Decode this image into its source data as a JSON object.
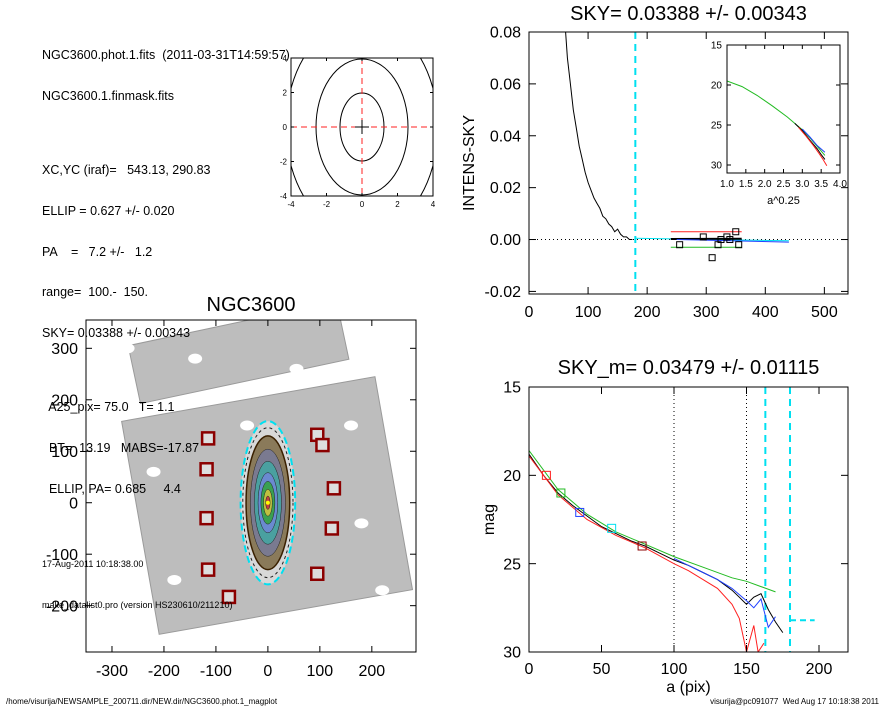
{
  "header": {
    "lines1": [
      "NGC3600.phot.1.fits  (2011-03-31T14:59:57)",
      "NGC3600.1.finmask.fits"
    ],
    "lines2": [
      "XC,YC (iraf)=   543.13, 290.83",
      "ELLIP = 0.627 +/- 0.020",
      "PA    =   7.2 +/-   1.2",
      "range=  100.-  150.",
      "SKY= 0.03388 +/- 0.00343"
    ],
    "lines3": [
      "  A25_pix= 75.0   T= 1.1",
      "  BT=  13.19   MABS=-17.87",
      "  ELLIP, PA= 0.685     4.4"
    ],
    "date": "17-Aug-2011 10:18:38.00",
    "program": "make_datalist0.pro (version HS230610/211210)"
  },
  "footer": {
    "left": "/home/visurija/NEWSAMPLE_200711.dir/NEW.dir/NGC3600.phot.1_magplot",
    "right": "visurija@pc091077  Wed Aug 17 10:18:38 2011"
  },
  "colors": {
    "cyan": "#00e0f0",
    "red": "#ff2020",
    "green": "#22bb22",
    "blue": "#2040ff",
    "maroon": "#8b0000"
  },
  "chart_data": [
    {
      "id": "contour",
      "type": "scatter",
      "title": "",
      "xlim": [
        -4,
        4
      ],
      "ylim": [
        -4,
        4
      ],
      "xticks": [
        -4,
        -2,
        0,
        2,
        4
      ],
      "yticks": [
        -4,
        -2,
        0,
        2,
        4
      ],
      "center": [
        0,
        0
      ]
    },
    {
      "id": "sky",
      "type": "line",
      "title": "SKY= 0.03388 +/- 0.00343",
      "xlabel": "",
      "ylabel": "INTENS-SKY",
      "xlim": [
        0,
        540
      ],
      "ylim": [
        -0.021,
        0.08
      ],
      "xticks": [
        0,
        100,
        200,
        300,
        400,
        500
      ],
      "yticks": [
        -0.02,
        0.0,
        0.02,
        0.04,
        0.06,
        0.08
      ],
      "ytick_labels": [
        "-0.02",
        "0.00",
        "0.02",
        "0.04",
        "0.06",
        "0.08"
      ],
      "sky_line_x": 180,
      "profile": {
        "x": [
          62,
          65,
          70,
          75,
          80,
          85,
          90,
          95,
          100,
          105,
          110,
          115,
          120,
          125,
          130,
          135,
          140,
          145,
          150,
          155,
          160,
          165,
          170,
          175
        ],
        "y": [
          0.08,
          0.07,
          0.06,
          0.05,
          0.043,
          0.036,
          0.031,
          0.026,
          0.022,
          0.019,
          0.016,
          0.014,
          0.012,
          0.009,
          0.008,
          0.006,
          0.005,
          0.003,
          0.004,
          0.002,
          0.001,
          0.001,
          0.0,
          0.0
        ]
      },
      "series": [
        {
          "color": "cyan",
          "x": [
            180,
            440
          ],
          "y": [
            0.0005,
            -0.0005
          ]
        },
        {
          "color": "black",
          "x": [
            240,
            360
          ],
          "y": [
            0.0002,
            0.0003
          ]
        },
        {
          "color": "blue",
          "x": [
            250,
            440
          ],
          "y": [
            0.0,
            -0.001
          ]
        },
        {
          "color": "red",
          "x": [
            240,
            360
          ],
          "y": [
            0.003,
            0.003
          ]
        },
        {
          "color": "green",
          "x": [
            240,
            360
          ],
          "y": [
            -0.003,
            -0.003
          ]
        }
      ],
      "squares": [
        [
          255,
          -0.002
        ],
        [
          295,
          0.001
        ],
        [
          310,
          -0.007
        ],
        [
          320,
          -0.002
        ],
        [
          325,
          0.0
        ],
        [
          335,
          0.001
        ],
        [
          340,
          0.0
        ],
        [
          350,
          0.003
        ],
        [
          355,
          -0.002
        ]
      ]
    },
    {
      "id": "inset",
      "type": "line",
      "title": "",
      "xlabel": "a^0.25",
      "xlim": [
        1.0,
        4.0
      ],
      "ylim": [
        15,
        31
      ],
      "xticks": [
        1.0,
        1.5,
        2.0,
        2.5,
        3.0,
        3.5,
        4.0
      ],
      "xtick_labels": [
        "1.0",
        "1.5",
        "2.0",
        "2.5",
        "3.0",
        "3.5",
        "4.0"
      ],
      "yticks": [
        15,
        20,
        25,
        30
      ],
      "series": [
        {
          "color": "green",
          "x": [
            1.0,
            1.4,
            1.8,
            2.2,
            2.6,
            3.0,
            3.2,
            3.4,
            3.6
          ],
          "y": [
            19.5,
            20.2,
            21.3,
            22.6,
            24.0,
            25.6,
            26.6,
            27.7,
            28.8
          ]
        },
        {
          "color": "black",
          "x": [
            2.8,
            3.0,
            3.2,
            3.4,
            3.5,
            3.6
          ],
          "y": [
            24.8,
            25.7,
            26.9,
            28.0,
            28.7,
            29.3
          ]
        },
        {
          "color": "red",
          "x": [
            2.9,
            3.1,
            3.3,
            3.45,
            3.55,
            3.65
          ],
          "y": [
            25.3,
            26.4,
            27.6,
            28.6,
            29.3,
            30.1
          ]
        },
        {
          "color": "blue",
          "x": [
            3.0,
            3.2,
            3.4,
            3.6
          ],
          "y": [
            25.5,
            26.5,
            27.6,
            28.4
          ]
        }
      ]
    },
    {
      "id": "image",
      "type": "scatter",
      "title": "NGC3600",
      "xlim": [
        -350,
        285
      ],
      "ylim": [
        -290,
        355
      ],
      "xticks": [
        -300,
        -200,
        -100,
        0,
        100,
        200
      ],
      "yticks": [
        -200,
        -100,
        0,
        100,
        200,
        300
      ],
      "ellipse": {
        "a": 130,
        "b": 42
      },
      "mask_boxes": [
        [
          -115,
          125
        ],
        [
          -118,
          65
        ],
        [
          -118,
          -30
        ],
        [
          -115,
          -130
        ],
        [
          -75,
          -183
        ],
        [
          95,
          132
        ],
        [
          105,
          112
        ],
        [
          127,
          28
        ],
        [
          123,
          -50
        ],
        [
          95,
          -138
        ]
      ]
    },
    {
      "id": "mag",
      "type": "line",
      "title": "SKY_m=  0.03479 +/- 0.01115",
      "xlabel": "a (pix)",
      "ylabel": "mag",
      "xlim": [
        0,
        220
      ],
      "ylim": [
        30,
        15
      ],
      "xticks": [
        0,
        50,
        100,
        150,
        200
      ],
      "yticks": [
        15,
        20,
        25,
        30
      ],
      "dotted_x": [
        100,
        150
      ],
      "dashed_x": [
        163,
        180
      ],
      "sky_level": 28.2,
      "series": [
        {
          "color": "black",
          "x": [
            0,
            10,
            20,
            30,
            40,
            50,
            60,
            70,
            80,
            90,
            100,
            110,
            120,
            130,
            140,
            145,
            150,
            155,
            160,
            165,
            170,
            175
          ],
          "y": [
            18.8,
            20.0,
            21.0,
            21.7,
            22.3,
            22.9,
            23.3,
            23.7,
            24.0,
            24.4,
            24.8,
            25.1,
            25.5,
            25.9,
            26.5,
            26.9,
            27.3,
            26.9,
            26.7,
            27.6,
            28.3,
            28.9
          ]
        },
        {
          "color": "green",
          "x": [
            0,
            20,
            40,
            60,
            80,
            100,
            120,
            140,
            150,
            160,
            170
          ],
          "y": [
            18.6,
            20.8,
            22.2,
            23.2,
            23.9,
            24.6,
            25.2,
            25.8,
            26.0,
            26.3,
            26.6
          ]
        },
        {
          "color": "red",
          "x": [
            0,
            20,
            40,
            60,
            80,
            100,
            110,
            120,
            130,
            140,
            145,
            150,
            155,
            158,
            162
          ],
          "y": [
            18.9,
            21.1,
            22.5,
            23.4,
            24.1,
            25.0,
            25.4,
            25.9,
            26.4,
            27.3,
            28.1,
            30.0,
            28.5,
            30.0,
            29.5
          ]
        },
        {
          "color": "blue",
          "x": [
            100,
            110,
            120,
            130,
            140,
            150,
            155,
            160,
            165,
            170
          ],
          "y": [
            24.7,
            25.1,
            25.5,
            25.9,
            26.4,
            27.1,
            27.5,
            27.0,
            28.6,
            28.0
          ]
        }
      ],
      "squares": [
        [
          12,
          20.0,
          "red"
        ],
        [
          22,
          21.0,
          "green"
        ],
        [
          35,
          22.1,
          "blue"
        ],
        [
          57,
          23.0,
          "cyan"
        ],
        [
          78,
          24.0,
          "maroon"
        ]
      ]
    }
  ]
}
